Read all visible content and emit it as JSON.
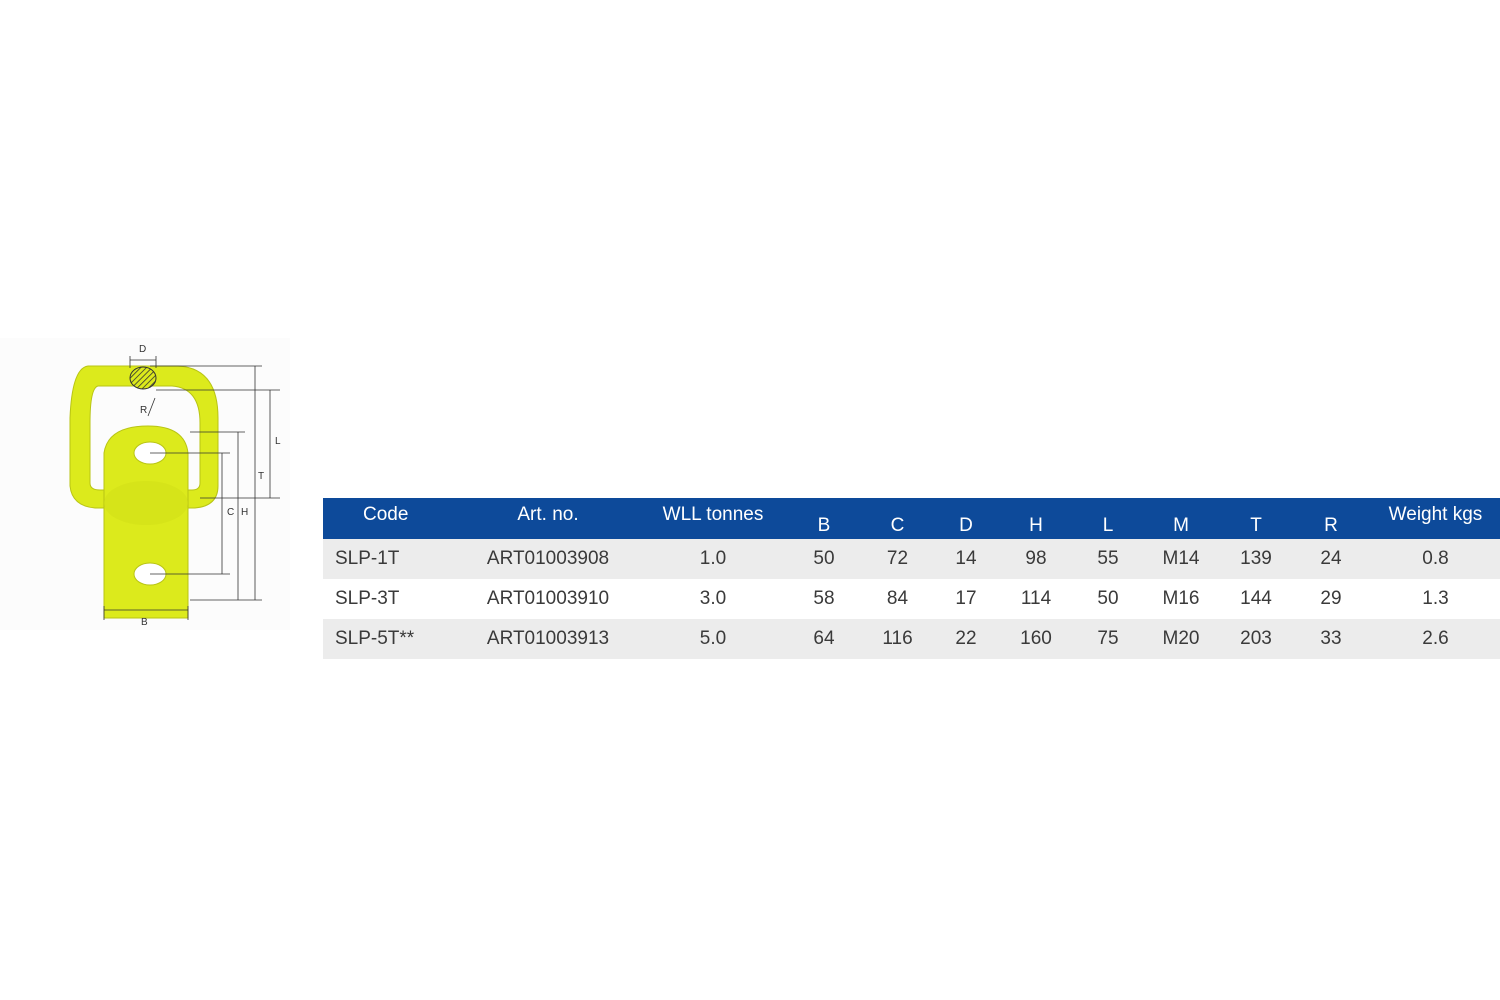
{
  "diagram": {
    "dimension_labels": {
      "D": "D",
      "R": "R",
      "L": "L",
      "T": "T",
      "C": "C",
      "H": "H",
      "B": "B"
    }
  },
  "table": {
    "colors": {
      "header_bg": "#0d4a9a",
      "header_text": "#ffffff",
      "row_shade": "#ececec",
      "ring": "#dcea1c"
    },
    "headers": {
      "code": "Code",
      "art_no": "Art. no.",
      "wll": "WLL tonnes",
      "b": "B",
      "c": "C",
      "d": "D",
      "h": "H",
      "l": "L",
      "m": "M",
      "t": "T",
      "r": "R",
      "weight": "Weight kgs"
    },
    "rows": [
      {
        "code": "SLP-1T",
        "art_no": "ART01003908",
        "wll": "1.0",
        "b": "50",
        "c": "72",
        "d": "14",
        "h": "98",
        "l": "55",
        "m": "M14",
        "t": "139",
        "r": "24",
        "weight": "0.8"
      },
      {
        "code": "SLP-3T",
        "art_no": "ART01003910",
        "wll": "3.0",
        "b": "58",
        "c": "84",
        "d": "17",
        "h": "114",
        "l": "50",
        "m": "M16",
        "t": "144",
        "r": "29",
        "weight": "1.3"
      },
      {
        "code": "SLP-5T**",
        "art_no": "ART01003913",
        "wll": "5.0",
        "b": "64",
        "c": "116",
        "d": "22",
        "h": "160",
        "l": "75",
        "m": "M20",
        "t": "203",
        "r": "33",
        "weight": "2.6"
      }
    ]
  }
}
